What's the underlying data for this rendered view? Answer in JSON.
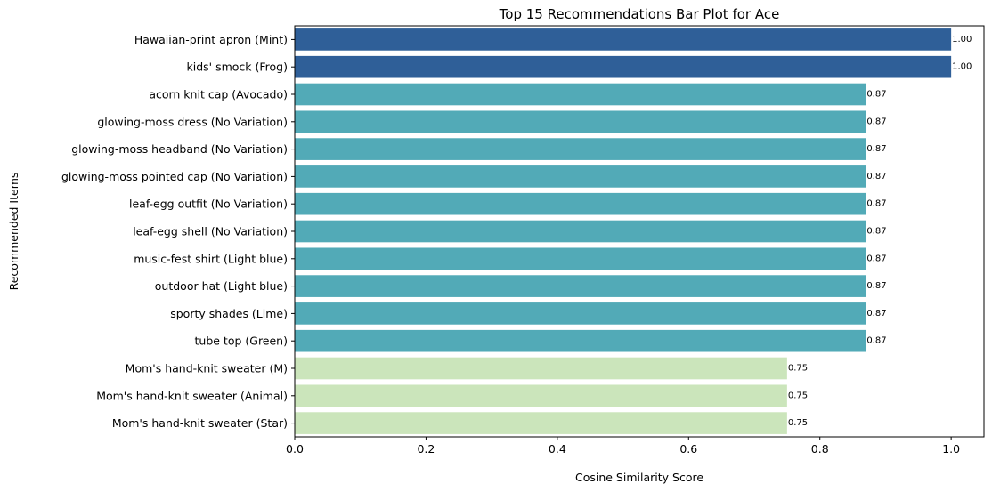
{
  "chart_data": {
    "type": "bar",
    "orientation": "horizontal",
    "title": "Top 15 Recommendations Bar Plot for Ace",
    "xlabel": "Cosine Similarity Score",
    "ylabel": "Recommended Items",
    "xlim": [
      0,
      1.05
    ],
    "xticks": [
      "0.0",
      "0.2",
      "0.4",
      "0.6",
      "0.8",
      "1.0"
    ],
    "categories": [
      "Hawaiian-print apron (Mint)",
      "kids' smock (Frog)",
      "acorn knit cap (Avocado)",
      "glowing-moss dress (No Variation)",
      "glowing-moss headband (No Variation)",
      "glowing-moss pointed cap (No Variation)",
      "leaf-egg outfit (No Variation)",
      "leaf-egg shell (No Variation)",
      "music-fest shirt (Light blue)",
      "outdoor hat (Light blue)",
      "sporty shades (Lime)",
      "tube top (Green)",
      "Mom's hand-knit sweater (M)",
      "Mom's hand-knit sweater (Animal)",
      "Mom's hand-knit sweater (Star)"
    ],
    "values": [
      1.0,
      1.0,
      0.87,
      0.87,
      0.87,
      0.87,
      0.87,
      0.87,
      0.87,
      0.87,
      0.87,
      0.87,
      0.75,
      0.75,
      0.75
    ],
    "data_labels": [
      "1.00",
      "1.00",
      "0.87",
      "0.87",
      "0.87",
      "0.87",
      "0.87",
      "0.87",
      "0.87",
      "0.87",
      "0.87",
      "0.87",
      "0.75",
      "0.75",
      "0.75"
    ],
    "bar_colors": [
      "#2f5f98",
      "#2f5f98",
      "#52aab7",
      "#52aab7",
      "#52aab7",
      "#52aab7",
      "#52aab7",
      "#52aab7",
      "#52aab7",
      "#52aab7",
      "#52aab7",
      "#52aab7",
      "#cbe5bb",
      "#cbe5bb",
      "#cbe5bb"
    ],
    "grid": false,
    "legend": "none"
  }
}
